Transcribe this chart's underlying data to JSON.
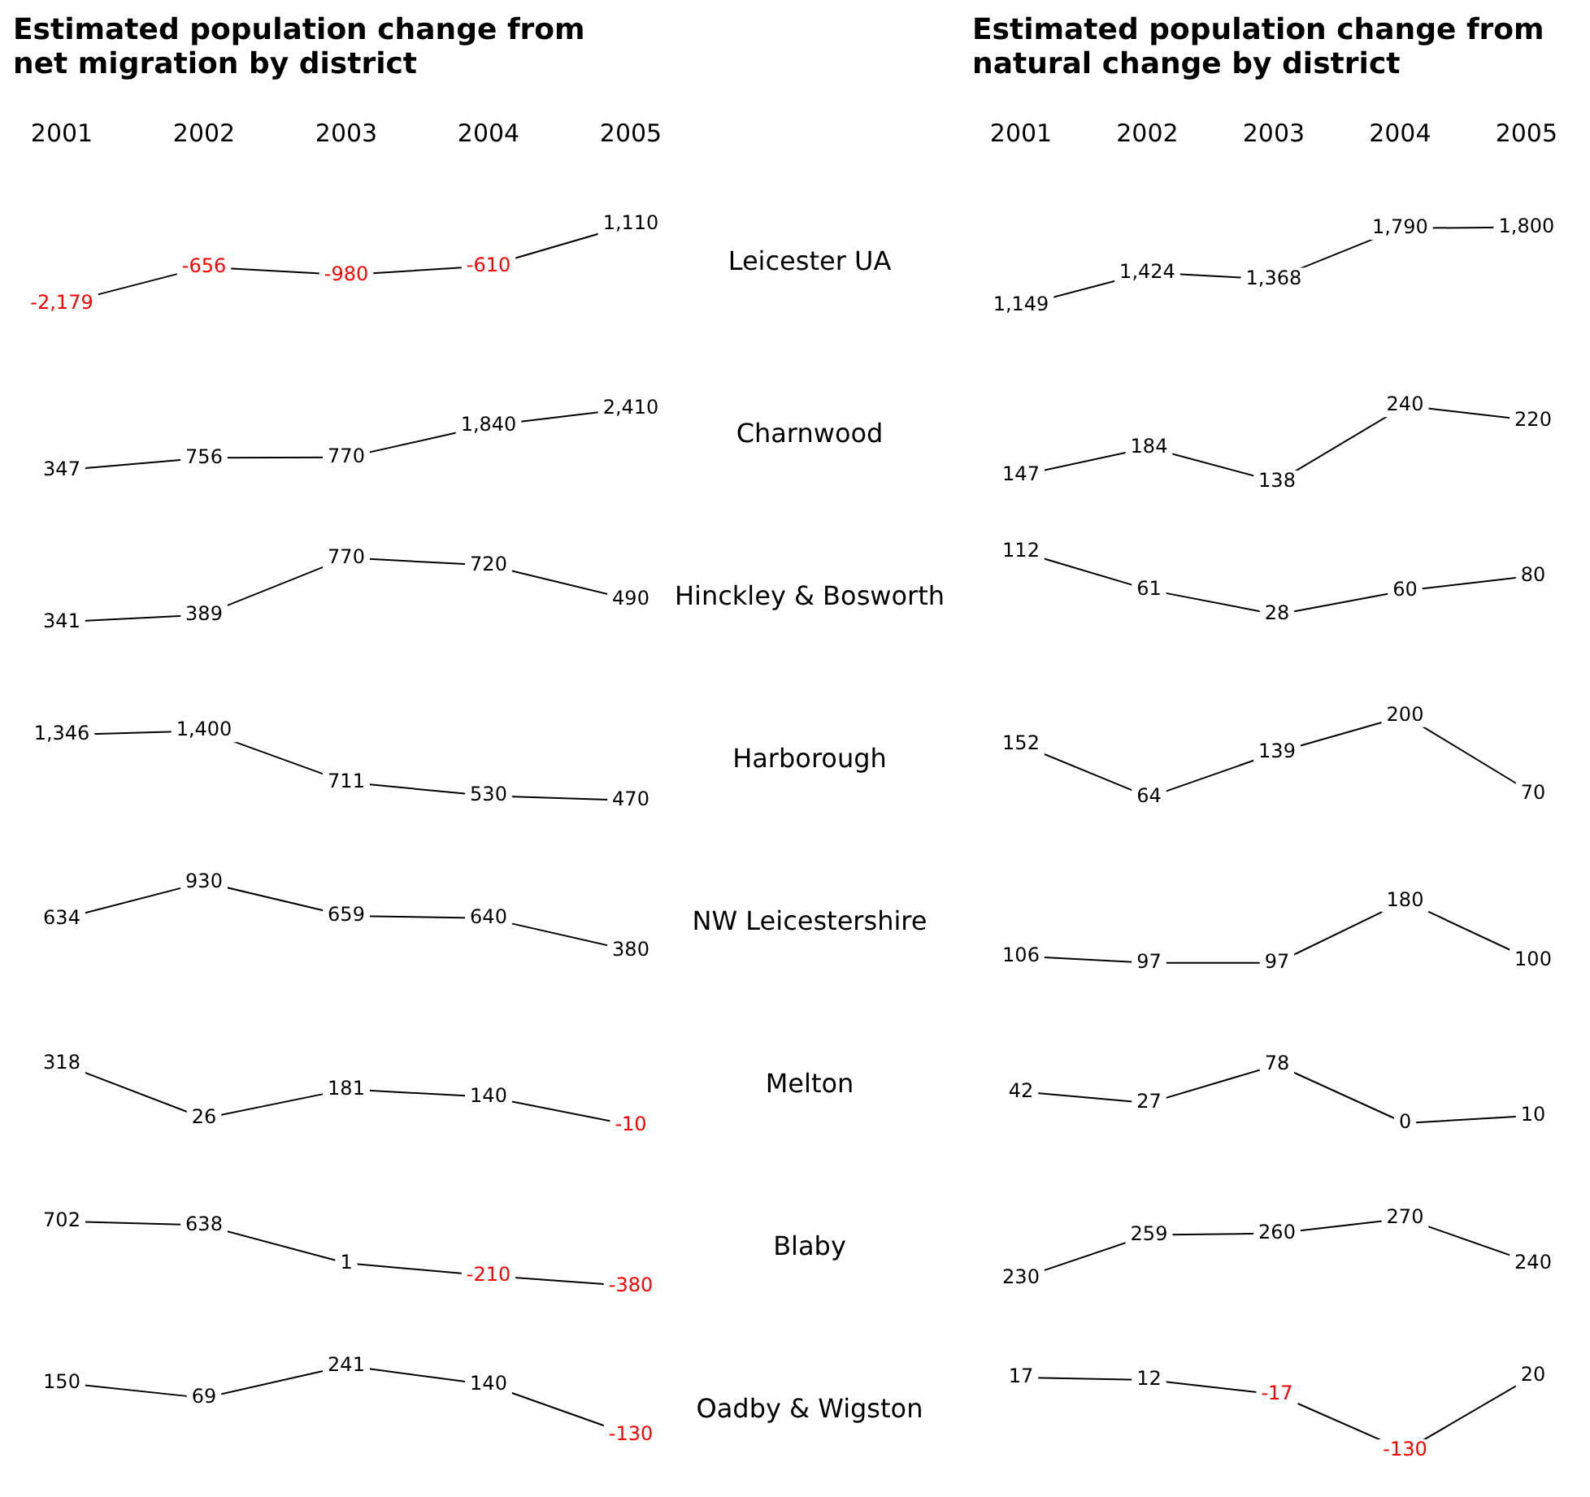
{
  "chart_data": [
    {
      "type": "line",
      "title": "Estimated population change from net migration by district",
      "categories": [
        "2001",
        "2002",
        "2003",
        "2004",
        "2005"
      ],
      "tick_labels": "x",
      "grid": false,
      "marker": "none",
      "series": [
        {
          "name": "Leicester UA",
          "color": "#000000",
          "values": [
            -2179,
            -656,
            -980,
            -610,
            1110
          ],
          "value_labels": [
            "-2,179",
            "-656",
            "-980",
            "-610",
            "1,110"
          ]
        }
      ]
    },
    {
      "type": "line",
      "categories": [
        "2001",
        "2002",
        "2003",
        "2004",
        "2005"
      ],
      "tick_labels": false,
      "grid": false,
      "marker": "none",
      "series": [
        {
          "name": "Charnwood",
          "color": "#000000",
          "values": [
            347,
            756,
            770,
            1840,
            2410
          ],
          "value_labels": [
            "347",
            "756",
            "770",
            "1,840",
            "2,410"
          ]
        }
      ]
    },
    {
      "type": "line",
      "categories": [
        "2001",
        "2002",
        "2003",
        "2004",
        "2005"
      ],
      "tick_labels": false,
      "grid": false,
      "marker": "none",
      "series": [
        {
          "name": "Hinckley & Bosworth",
          "color": "#000000",
          "values": [
            341,
            389,
            770,
            720,
            490
          ],
          "value_labels": [
            "341",
            "389",
            "770",
            "720",
            "490"
          ]
        }
      ]
    },
    {
      "type": "line",
      "categories": [
        "2001",
        "2002",
        "2003",
        "2004",
        "2005"
      ],
      "tick_labels": false,
      "grid": false,
      "marker": "none",
      "series": [
        {
          "name": "Harborough",
          "color": "#000000",
          "values": [
            1346,
            1400,
            711,
            530,
            470
          ],
          "value_labels": [
            "1,346",
            "1,400",
            "711",
            "530",
            "470"
          ]
        }
      ]
    },
    {
      "type": "line",
      "categories": [
        "2001",
        "2002",
        "2003",
        "2004",
        "2005"
      ],
      "tick_labels": false,
      "grid": false,
      "marker": "none",
      "series": [
        {
          "name": "NW Leicestershire",
          "color": "#000000",
          "values": [
            634,
            930,
            659,
            640,
            380
          ],
          "value_labels": [
            "634",
            "930",
            "659",
            "640",
            "380"
          ]
        }
      ]
    },
    {
      "type": "line",
      "categories": [
        "2001",
        "2002",
        "2003",
        "2004",
        "2005"
      ],
      "tick_labels": false,
      "grid": false,
      "marker": "none",
      "series": [
        {
          "name": "Melton",
          "color": "#000000",
          "values": [
            318,
            26,
            181,
            140,
            -10
          ],
          "value_labels": [
            "318",
            "26",
            "181",
            "140",
            "-10"
          ]
        }
      ]
    },
    {
      "type": "line",
      "categories": [
        "2001",
        "2002",
        "2003",
        "2004",
        "2005"
      ],
      "tick_labels": false,
      "grid": false,
      "marker": "none",
      "series": [
        {
          "name": "Blaby",
          "color": "#000000",
          "values": [
            702,
            638,
            1,
            -210,
            -380
          ],
          "value_labels": [
            "702",
            "638",
            "1",
            "-210",
            "-380"
          ]
        }
      ]
    },
    {
      "type": "line",
      "categories": [
        "2001",
        "2002",
        "2003",
        "2004",
        "2005"
      ],
      "tick_labels": false,
      "grid": false,
      "marker": "none",
      "series": [
        {
          "name": "Oadby & Wigston",
          "color": "#000000",
          "values": [
            150,
            69,
            241,
            140,
            -130
          ],
          "value_labels": [
            "150",
            "69",
            "241",
            "140",
            "-130"
          ]
        }
      ]
    },
    {
      "type": "line",
      "title": "Estimated population change from natural change by district",
      "categories": [
        "2001",
        "2002",
        "2003",
        "2004",
        "2005"
      ],
      "tick_labels": "x",
      "grid": false,
      "marker": "none",
      "series": [
        {
          "color": "#000000",
          "values": [
            1149,
            1424,
            1368,
            1790,
            1800
          ],
          "value_labels": [
            "1,149",
            "1,424",
            "1,368",
            "1,790",
            "1,800"
          ]
        }
      ]
    },
    {
      "type": "line",
      "categories": [
        "2001",
        "2002",
        "2003",
        "2004",
        "2005"
      ],
      "tick_labels": false,
      "grid": false,
      "marker": "none",
      "series": [
        {
          "color": "#000000",
          "values": [
            147,
            184,
            138,
            240,
            220
          ],
          "value_labels": [
            "147",
            "184",
            "138",
            "240",
            "220"
          ]
        }
      ]
    },
    {
      "type": "line",
      "categories": [
        "2001",
        "2002",
        "2003",
        "2004",
        "2005"
      ],
      "tick_labels": false,
      "grid": false,
      "marker": "none",
      "series": [
        {
          "color": "#000000",
          "values": [
            112,
            61,
            28,
            60,
            80
          ],
          "value_labels": [
            "112",
            "61",
            "28",
            "60",
            "80"
          ]
        }
      ]
    },
    {
      "type": "line",
      "categories": [
        "2001",
        "2002",
        "2003",
        "2004",
        "2005"
      ],
      "tick_labels": false,
      "grid": false,
      "marker": "none",
      "series": [
        {
          "color": "#000000",
          "values": [
            152,
            64,
            139,
            200,
            70
          ],
          "value_labels": [
            "152",
            "64",
            "139",
            "200",
            "70"
          ]
        }
      ]
    },
    {
      "type": "line",
      "categories": [
        "2001",
        "2002",
        "2003",
        "2004",
        "2005"
      ],
      "tick_labels": false,
      "grid": false,
      "marker": "none",
      "series": [
        {
          "color": "#000000",
          "values": [
            106,
            97,
            97,
            180,
            100
          ],
          "value_labels": [
            "106",
            "97",
            "97",
            "180",
            "100"
          ]
        }
      ]
    },
    {
      "type": "line",
      "categories": [
        "2001",
        "2002",
        "2003",
        "2004",
        "2005"
      ],
      "tick_labels": false,
      "grid": false,
      "marker": "none",
      "series": [
        {
          "color": "#000000",
          "values": [
            42,
            27,
            78,
            0,
            10
          ],
          "value_labels": [
            "42",
            "27",
            "78",
            "0",
            "10"
          ]
        }
      ]
    },
    {
      "type": "line",
      "categories": [
        "2001",
        "2002",
        "2003",
        "2004",
        "2005"
      ],
      "tick_labels": false,
      "grid": false,
      "marker": "none",
      "series": [
        {
          "color": "#000000",
          "values": [
            230,
            259,
            260,
            270,
            240
          ],
          "value_labels": [
            "230",
            "259",
            "260",
            "270",
            "240"
          ]
        }
      ]
    },
    {
      "type": "line",
      "categories": [
        "2001",
        "2002",
        "2003",
        "2004",
        "2005"
      ],
      "tick_labels": false,
      "grid": false,
      "marker": "none",
      "series": [
        {
          "color": "#000000",
          "values": [
            17,
            12,
            -17,
            -130,
            20
          ],
          "value_labels": [
            "17",
            "12",
            "-17",
            "-130",
            "20"
          ]
        }
      ]
    }
  ]
}
